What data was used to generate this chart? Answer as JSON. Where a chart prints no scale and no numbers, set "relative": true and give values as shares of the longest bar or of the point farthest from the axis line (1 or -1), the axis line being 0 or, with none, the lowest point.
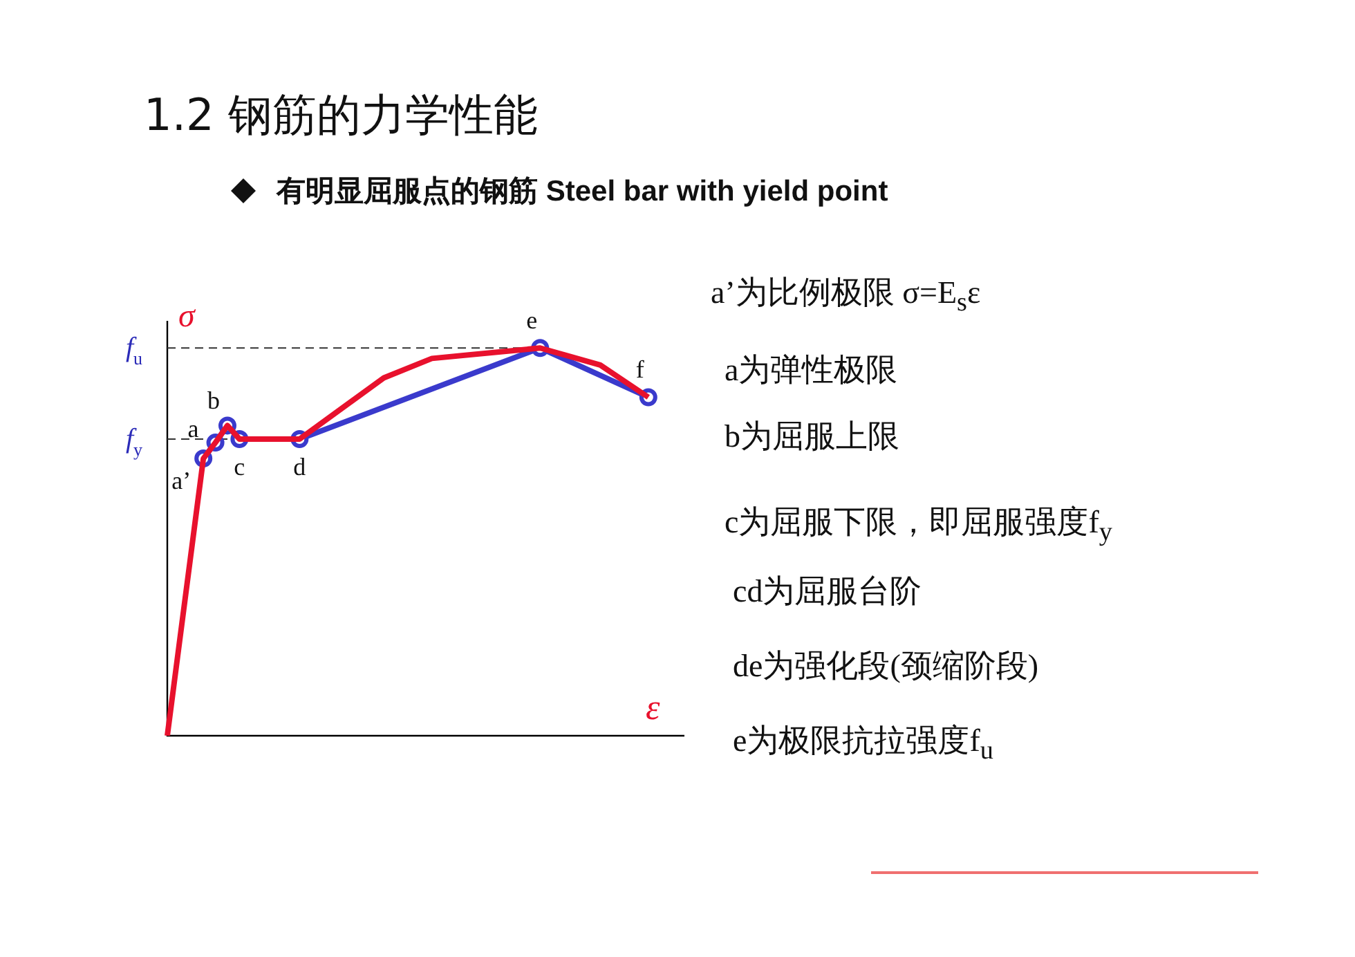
{
  "chart_data": {
    "type": "line",
    "relative": true,
    "title": "1.2 钢筋的力学性能",
    "subtitle": "有明显屈服点的钢筋 Steel bar with yield point",
    "xlabel": "ε",
    "ylabel": "σ",
    "legend": false,
    "categories": [
      null,
      null,
      null,
      null,
      null,
      null,
      null,
      null,
      null,
      null,
      null,
      null,
      null,
      null,
      null,
      null,
      null,
      null,
      null,
      null,
      null,
      null,
      null,
      null,
      null,
      null,
      null,
      null,
      null,
      null,
      null,
      null,
      null,
      null,
      null,
      null,
      null,
      null,
      null,
      null,
      null,
      null,
      null,
      null
    ],
    "series": [
      {
        "color": "#3a3acc",
        "marker": "circle",
        "values": [
          null,
          null,
          null,
          0.715,
          0.756,
          0.8,
          0.765,
          null,
          null,
          null,
          null,
          0.765,
          null,
          null,
          null,
          null,
          null,
          null,
          null,
          null,
          null,
          null,
          null,
          null,
          null,
          null,
          null,
          null,
          null,
          null,
          null,
          1,
          null,
          null,
          null,
          null,
          null,
          null,
          null,
          null,
          0.873,
          null,
          null,
          null
        ]
      },
      {
        "color": "#e8112d",
        "marker": "none",
        "values": [
          0,
          null,
          null,
          0.715,
          0.756,
          0.8,
          0.765,
          null,
          null,
          null,
          null,
          0.765,
          null,
          null,
          null,
          null,
          null,
          null,
          0.923,
          null,
          null,
          null,
          0.973,
          null,
          null,
          null,
          null,
          null,
          null,
          null,
          null,
          1,
          null,
          null,
          null,
          null,
          0.956,
          null,
          null,
          null,
          0.873,
          null,
          null,
          null
        ]
      }
    ],
    "ref_lines": [
      {
        "axis": "y",
        "value": 1,
        "label": "f$_{u}$",
        "line_style": "dashed",
        "color": "#333333"
      },
      {
        "axis": "y",
        "value": 0.765,
        "label": "f$_{y}$",
        "line_style": "dashed",
        "color": "#333333"
      }
    ],
    "annotations": [
      "a’",
      {
        "text": "a",
        "y": 0.756
      },
      {
        "text": "b",
        "y": 0.8
      },
      {
        "text": "c",
        "y": 0.765
      },
      {
        "text": "d",
        "y": 0.765
      },
      {
        "text": "e",
        "y": 1
      },
      {
        "text": "f",
        "y": 0.873
      },
      "a’为比例极限 σ=E$_{s}$ε",
      "a为弹性极限",
      "b为屈服上限",
      "c为屈服下限，即屈服强度f$_{y}$",
      "cd为屈服台阶",
      "de为强化段(颈缩阶段)",
      "e为极限抗拉强度f$_{u}$"
    ]
  }
}
